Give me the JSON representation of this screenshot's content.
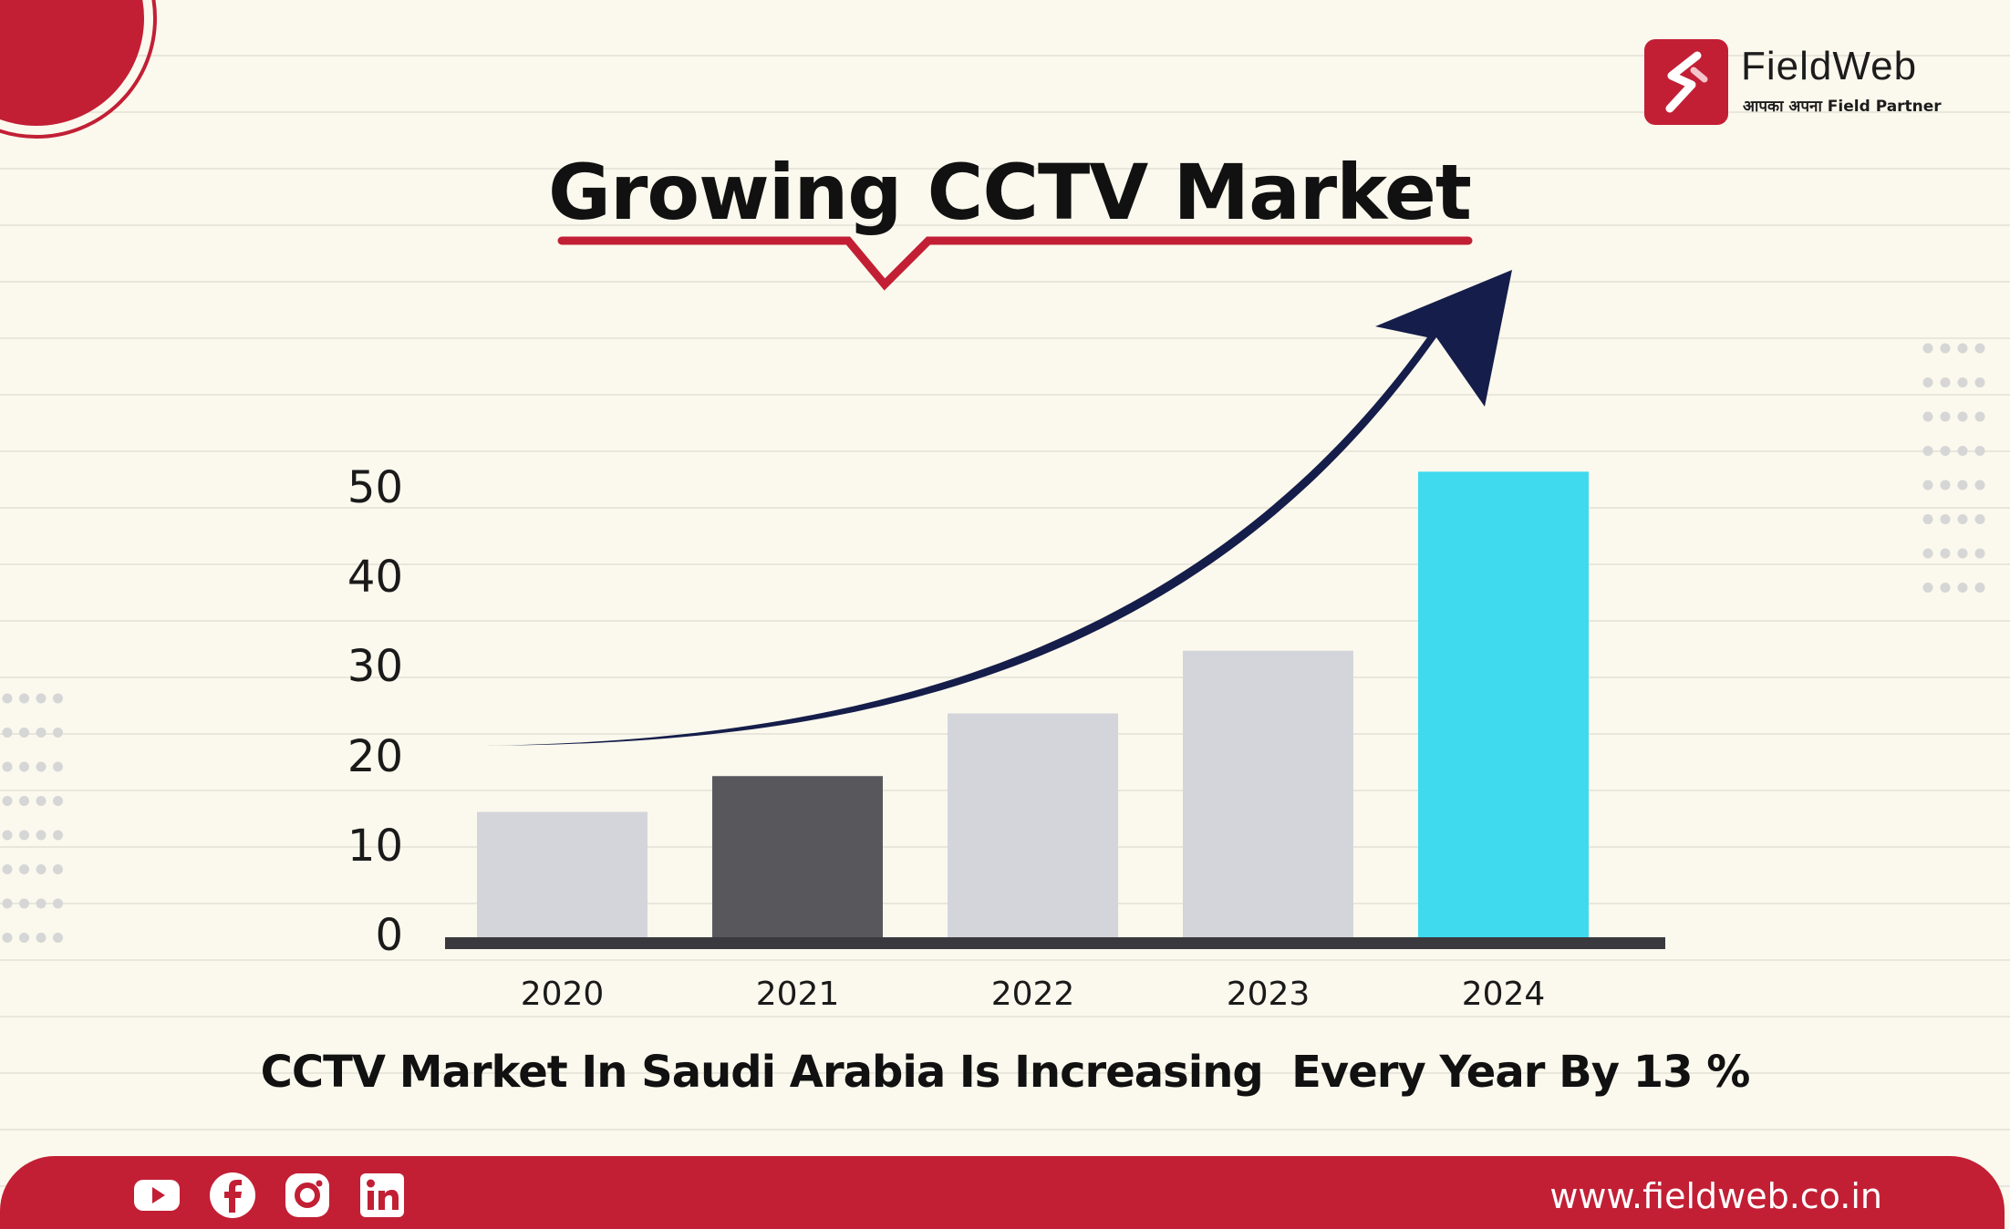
{
  "brand": {
    "name": "FieldWeb",
    "tagline": "आपका अपना  Field Partner",
    "website": "www.fieldweb.co.in",
    "social_icons": [
      "youtube-icon",
      "facebook-icon",
      "instagram-icon",
      "linkedin-icon"
    ]
  },
  "colors": {
    "brand_red": "#c21f35",
    "arrow_navy": "#151d4a",
    "bar_light": "#d3d5da",
    "bar_dark": "#58585c",
    "bar_highlight": "#3fdaee"
  },
  "caption": "CCTV Market In Saudi Arabia Is Increasing  Every Year By 13 %",
  "chart_data": {
    "type": "bar",
    "title": "Growing CCTV Market",
    "categories": [
      "2020",
      "2021",
      "2022",
      "2023",
      "2024"
    ],
    "values": [
      14,
      18,
      25,
      32,
      52
    ],
    "bar_colors": [
      "#d3d5da",
      "#58585c",
      "#d3d5da",
      "#d3d5da",
      "#3fdaee"
    ],
    "yticks": [
      "50",
      "40",
      "30",
      "20",
      "10",
      "0"
    ],
    "ylim": [
      0,
      50
    ],
    "grid": false,
    "legend": "none",
    "annotation": "upward-trend-arrow"
  }
}
